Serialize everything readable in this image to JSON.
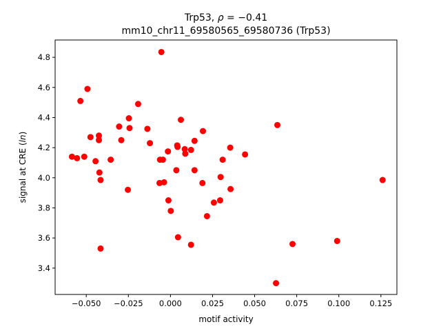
{
  "chart_data": {
    "type": "scatter",
    "title_line1_prefix": "Trp53, ",
    "title_line1_rho": "ρ",
    "title_line1_suffix": " = −0.41",
    "title_line2": "mm10_chr11_69580565_69580736 (Trp53)",
    "xlabel": "motif activity",
    "ylabel_prefix": "signal at CRE (",
    "ylabel_italic": "ln",
    "ylabel_suffix": ")",
    "xlim": [
      -0.0685,
      0.1345
    ],
    "ylim": [
      3.225,
      4.915
    ],
    "xticks": [
      -0.05,
      -0.025,
      0.0,
      0.025,
      0.05,
      0.075,
      0.1,
      0.125
    ],
    "xtick_labels": [
      "−0.050",
      "−0.025",
      "0.000",
      "0.025",
      "0.050",
      "0.075",
      "0.100",
      "0.125"
    ],
    "yticks": [
      3.4,
      3.6,
      3.8,
      4.0,
      4.2,
      4.4,
      4.6,
      4.8
    ],
    "ytick_labels": [
      "3.4",
      "3.6",
      "3.8",
      "4.0",
      "4.2",
      "4.4",
      "4.6",
      "4.8"
    ],
    "grid": false,
    "marker_color": "#ff0000",
    "x": [
      -0.0585,
      -0.0555,
      -0.0535,
      -0.0512,
      -0.0493,
      -0.0475,
      -0.0445,
      -0.0425,
      -0.0425,
      -0.0422,
      -0.0415,
      -0.0415,
      -0.0355,
      -0.0305,
      -0.0292,
      -0.0253,
      -0.0247,
      -0.0243,
      -0.0192,
      -0.0137,
      -0.0122,
      -0.0065,
      -0.0062,
      -0.0054,
      -0.0045,
      -0.0038,
      -0.0015,
      -0.0012,
      0.0002,
      0.0035,
      0.004,
      0.0042,
      0.0045,
      0.0062,
      0.0085,
      0.0088,
      0.0122,
      0.0122,
      0.0143,
      0.0143,
      0.019,
      0.0193,
      0.0217,
      0.0258,
      0.0295,
      0.0298,
      0.031,
      0.0355,
      0.0357,
      0.0443,
      0.0627,
      0.0635,
      0.0725,
      0.099,
      0.126
    ],
    "y": [
      4.14,
      4.13,
      4.51,
      4.14,
      4.59,
      4.27,
      4.11,
      4.28,
      4.25,
      4.035,
      3.985,
      3.53,
      4.12,
      4.34,
      4.25,
      3.92,
      4.395,
      4.33,
      4.49,
      4.325,
      4.23,
      3.965,
      4.12,
      4.835,
      4.12,
      3.97,
      4.175,
      3.85,
      3.78,
      4.05,
      4.215,
      4.205,
      3.605,
      4.385,
      4.19,
      4.16,
      4.185,
      3.555,
      4.245,
      4.05,
      3.965,
      4.31,
      3.745,
      3.835,
      3.85,
      4.005,
      4.12,
      4.2,
      3.925,
      4.155,
      3.3,
      4.35,
      3.56,
      3.58,
      3.985
    ]
  }
}
